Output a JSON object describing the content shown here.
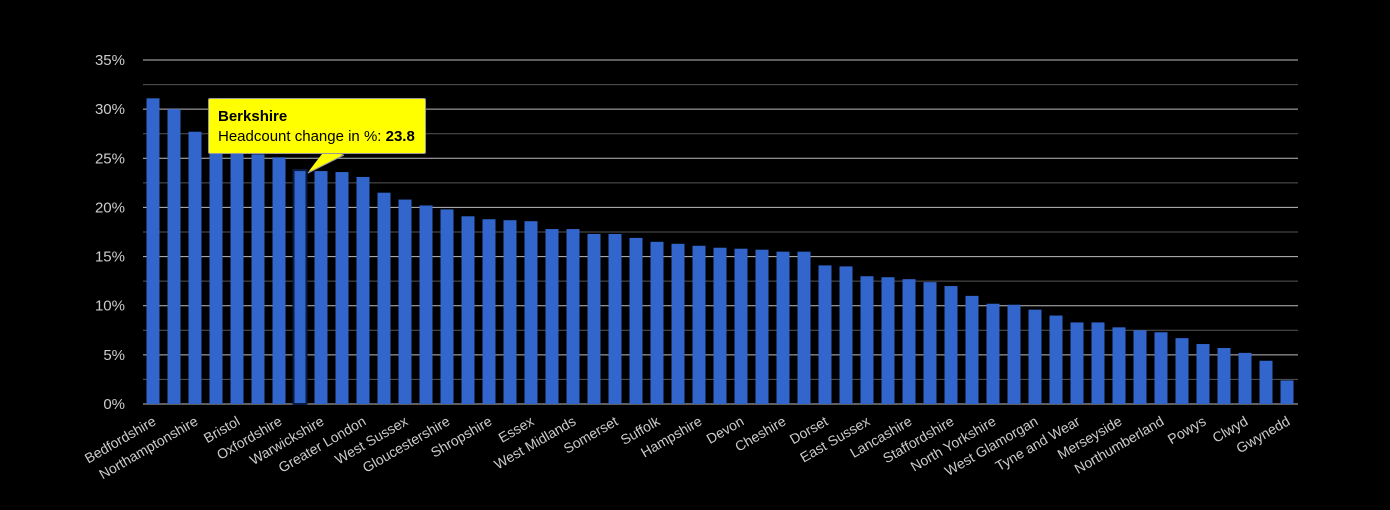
{
  "chart_data": {
    "type": "bar",
    "title": "",
    "xlabel": "",
    "ylabel": "",
    "ylim": [
      0,
      35
    ],
    "yticks": [
      "0%",
      "5%",
      "10%",
      "15%",
      "20%",
      "25%",
      "30%",
      "35%"
    ],
    "grid": true,
    "bar_color": "#3366cc",
    "background": "#000000",
    "categories": [
      "Bedfordshire",
      "",
      "Northamptonshire",
      "",
      "Bristol",
      "",
      "Oxfordshire",
      "Berkshire",
      "Warwickshire",
      "",
      "Greater London",
      "",
      "West Sussex",
      "",
      "Gloucestershire",
      "",
      "Shropshire",
      "",
      "Essex",
      "",
      "West Midlands",
      "",
      "Somerset",
      "",
      "Suffolk",
      "",
      "Hampshire",
      "",
      "Devon",
      "",
      "Cheshire",
      "",
      "Dorset",
      "",
      "East Sussex",
      "",
      "Lancashire",
      "",
      "Staffordshire",
      "",
      "North Yorkshire",
      "",
      "West Glamorgan",
      "",
      "Tyne and Wear",
      "",
      "Merseyside",
      "",
      "Northumberland",
      "",
      "Powys",
      "",
      "Clwyd",
      "",
      "Gwynedd"
    ],
    "values": [
      31.1,
      30.0,
      27.7,
      26.5,
      25.8,
      25.4,
      25.1,
      23.8,
      23.7,
      23.6,
      23.1,
      21.5,
      20.8,
      20.2,
      19.8,
      19.1,
      18.8,
      18.7,
      18.6,
      17.8,
      17.8,
      17.3,
      17.3,
      16.9,
      16.5,
      16.3,
      16.1,
      15.9,
      15.8,
      15.7,
      15.5,
      15.5,
      14.1,
      14.0,
      13.0,
      12.9,
      12.7,
      12.4,
      12.0,
      11.0,
      10.2,
      10.1,
      9.6,
      9.0,
      8.3,
      8.3,
      7.8,
      7.5,
      7.3,
      6.7,
      6.1,
      5.7,
      5.2,
      4.4,
      2.4
    ],
    "highlighted_index": 7,
    "tooltip": {
      "title": "Berkshire",
      "label": "Headcount change in %: ",
      "value": "23.8",
      "color": "#ffff00"
    }
  }
}
